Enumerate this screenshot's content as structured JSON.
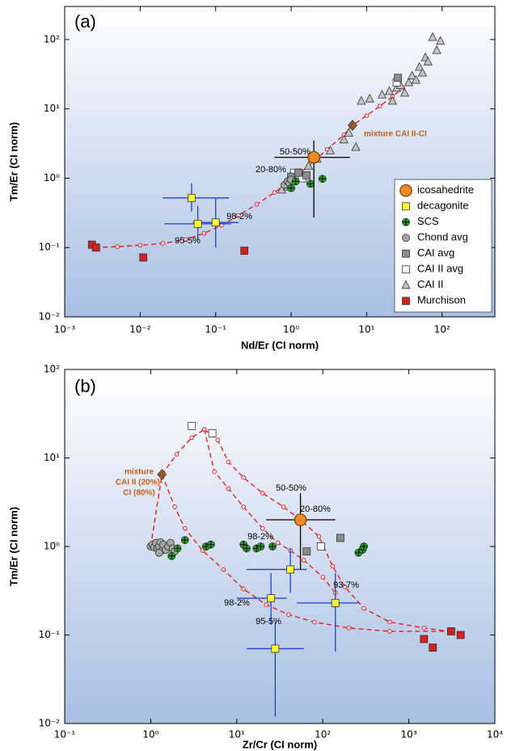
{
  "chart_data": [
    {
      "type": "scatter",
      "xlabel": "Nd/Er (CI norm)",
      "ylabel": "Tm/Er (CI norm)",
      "xscale": "log",
      "yscale": "log",
      "xlim": [
        0.001,
        500
      ],
      "ylim": [
        0.01,
        300
      ],
      "xticks": [
        {
          "value": 0.001,
          "label": "10⁻³"
        },
        {
          "value": 0.01,
          "label": "10⁻²"
        },
        {
          "value": 0.1,
          "label": "10⁻¹"
        },
        {
          "value": 1,
          "label": "10⁰"
        },
        {
          "value": 10,
          "label": "10¹"
        },
        {
          "value": 100,
          "label": "10²"
        }
      ],
      "yticks": [
        {
          "value": 0.01,
          "label": "10⁻²"
        },
        {
          "value": 0.1,
          "label": "10⁻¹"
        },
        {
          "value": 1,
          "label": "10⁰"
        },
        {
          "value": 10,
          "label": "10¹"
        },
        {
          "value": 100,
          "label": "10²"
        }
      ],
      "legend": "lower right",
      "annotations": [
        "(a)",
        "mixture CAI II-CI",
        "50-50%",
        "20-80%",
        "98-2%",
        "95-5%"
      ],
      "curves": [
        {
          "color": "#e02020",
          "x": [
            0.0025,
            0.005,
            0.01,
            0.02,
            0.04,
            0.07,
            0.12,
            0.2,
            0.35,
            0.6,
            1,
            1.7,
            3,
            5,
            6.5,
            10,
            15,
            22,
            30
          ],
          "y": [
            0.1,
            0.103,
            0.108,
            0.115,
            0.13,
            0.16,
            0.21,
            0.29,
            0.42,
            0.62,
            0.95,
            1.5,
            2.6,
            4.2,
            5.8,
            8,
            11,
            15,
            20
          ]
        }
      ],
      "series": [
        {
          "name": "CAI II",
          "marker": "triangle",
          "color": "#c4c4c4",
          "x": [
            0.75,
            0.9,
            1.0,
            1.3,
            1.7,
            2.2,
            3.3,
            5.0,
            5.8,
            8.5,
            7.2,
            11,
            16,
            20,
            22,
            25,
            28,
            32,
            36,
            40,
            45,
            50,
            55,
            60,
            65,
            75,
            85,
            95
          ],
          "y": [
            0.68,
            0.75,
            1.1,
            1.2,
            1.5,
            1.9,
            2.5,
            3.6,
            4.5,
            13,
            2.8,
            14,
            16,
            18,
            13,
            20,
            22,
            17,
            24,
            30,
            26,
            40,
            33,
            55,
            48,
            108,
            70,
            95
          ]
        },
        {
          "name": "CAI II avg",
          "marker": "square",
          "color": "#ffffff",
          "x": [
            1.1,
            1.4,
            25
          ],
          "y": [
            1.2,
            1.0,
            24
          ]
        },
        {
          "name": "CAI avg",
          "marker": "square",
          "color": "#8c8c8c",
          "x": [
            1.0,
            1.25,
            1.6,
            26
          ],
          "y": [
            1.05,
            1.2,
            1.1,
            28
          ]
        },
        {
          "name": "Chond avg",
          "marker": "circle",
          "color": "#a6a6a6",
          "x": [
            0.82,
            0.9,
            0.95,
            1.0
          ],
          "y": [
            0.8,
            0.9,
            0.85,
            0.95
          ]
        },
        {
          "name": "SCS",
          "marker": "circle-plus",
          "color": "#2e9e2e",
          "x": [
            1.0,
            1.15,
            1.8,
            2.6
          ],
          "y": [
            0.72,
            0.9,
            0.83,
            0.98
          ]
        },
        {
          "name": "Murchison",
          "marker": "square",
          "color": "#d42020",
          "x": [
            0.0023,
            0.0026,
            0.011,
            0.24
          ],
          "y": [
            0.11,
            0.1,
            0.072,
            0.09
          ]
        },
        {
          "name": "decagonite",
          "marker": "square",
          "color": "#ffff33",
          "error_color": "#1f3fcf",
          "x": [
            0.048,
            0.058,
            0.1
          ],
          "y": [
            0.52,
            0.22,
            0.23
          ],
          "x_range": [
            [
              0.02,
              0.15
            ],
            [
              0.021,
              0.16
            ],
            [
              0.05,
              0.2
            ]
          ],
          "y_range": [
            [
              0.33,
              0.85
            ],
            [
              0.13,
              0.4
            ],
            [
              0.1,
              0.52
            ]
          ]
        },
        {
          "name": "icosahedrite",
          "marker": "big-circle",
          "color": "#f08a24",
          "error_color": "#000000",
          "x": [
            2.0
          ],
          "y": [
            2.0
          ],
          "x_range": [
            [
              0.6,
              6
            ]
          ],
          "y_range": [
            [
              0.27,
              3.5
            ]
          ]
        },
        {
          "marker": "diamond",
          "color": "#9a5a2a",
          "x": [
            6.5
          ],
          "y": [
            5.8
          ]
        }
      ],
      "legend_order": [
        7,
        6,
        4,
        3,
        2,
        1,
        0,
        5
      ]
    },
    {
      "type": "scatter",
      "xlabel": "Zr/Cr (CI norm)",
      "ylabel": "Tm/Er (CI norm)",
      "xscale": "log",
      "yscale": "log",
      "xlim": [
        0.1,
        10000
      ],
      "ylim": [
        0.01,
        100
      ],
      "xticks": [
        {
          "value": 0.1,
          "label": "10⁻¹"
        },
        {
          "value": 1,
          "label": "10⁰"
        },
        {
          "value": 10,
          "label": "10¹"
        },
        {
          "value": 100,
          "label": "10²"
        },
        {
          "value": 1000,
          "label": "10³"
        },
        {
          "value": 10000,
          "label": "10⁴"
        }
      ],
      "yticks": [
        {
          "value": 0.01,
          "label": "10⁻²"
        },
        {
          "value": 0.1,
          "label": "10⁻¹"
        },
        {
          "value": 1,
          "label": "10⁰"
        },
        {
          "value": 10,
          "label": "10¹"
        },
        {
          "value": 100,
          "label": "10²"
        }
      ],
      "annotations": [
        "(b)",
        "mixture",
        "CAI II (20%)-",
        "CI (80%)",
        "50-50%",
        "20-80%",
        "98-2%",
        "98-2%",
        "93-7%",
        "95-5%"
      ],
      "curves": [
        {
          "color": "#e02020",
          "x": [
            4.2,
            6,
            8,
            12,
            20,
            35,
            55,
            90,
            130,
            180,
            300,
            600,
            1500,
            3000
          ],
          "y": [
            21,
            16,
            9,
            6,
            4,
            2.8,
            2,
            1.3,
            0.6,
            0.35,
            0.2,
            0.14,
            0.12,
            0.11
          ]
        },
        {
          "color": "#e02020",
          "x": [
            4.2,
            5.5,
            8,
            12,
            20,
            30,
            42,
            60,
            100,
            140
          ],
          "y": [
            21,
            7,
            4.5,
            2.8,
            1.6,
            1.1,
            0.9,
            0.7,
            0.45,
            0.3
          ]
        },
        {
          "color": "#e02020",
          "x": [
            1,
            1.35,
            1.9,
            2.5,
            4,
            7,
            12,
            22,
            40,
            80,
            200,
            600,
            3000
          ],
          "y": [
            1,
            6.5,
            2.8,
            1.6,
            0.9,
            0.55,
            0.33,
            0.22,
            0.17,
            0.14,
            0.12,
            0.11,
            0.11
          ]
        },
        {
          "color": "#e02020",
          "x": [
            1.35,
            2,
            3,
            4.2
          ],
          "y": [
            6.5,
            11,
            17,
            21
          ]
        }
      ],
      "series": [
        {
          "marker": "square",
          "color": "#ffffff",
          "x": [
            3.0,
            5.2,
            95
          ],
          "y": [
            23,
            19,
            1.0
          ]
        },
        {
          "marker": "square",
          "color": "#8c8c8c",
          "x": [
            65,
            160
          ],
          "y": [
            0.88,
            1.25
          ]
        },
        {
          "marker": "circle",
          "color": "#a6a6a6",
          "x": [
            1.0,
            1.05,
            1.1,
            1.15,
            1.2,
            1.25,
            1.3,
            1.35,
            1.4,
            1.5,
            1.6,
            1.7,
            1.8,
            1.9,
            1.25
          ],
          "y": [
            1.0,
            1.05,
            0.98,
            1.1,
            0.95,
            1.0,
            1.12,
            0.9,
            1.05,
            0.92,
            1.0,
            1.1,
            0.95,
            0.88,
            0.85
          ]
        },
        {
          "marker": "circle-plus",
          "color": "#2e9e2e",
          "x": [
            1.75,
            2.05,
            2.5,
            4.4,
            5.0,
            12,
            13,
            17,
            19,
            26,
            260,
            290,
            300
          ],
          "y": [
            0.78,
            0.95,
            1.18,
            1.0,
            1.05,
            1.05,
            0.95,
            0.95,
            1.0,
            1.0,
            0.85,
            0.92,
            1.0
          ]
        },
        {
          "marker": "square",
          "color": "#d42020",
          "x": [
            1500,
            1900,
            3100,
            4000
          ],
          "y": [
            0.09,
            0.072,
            0.11,
            0.1
          ]
        },
        {
          "marker": "square",
          "color": "#ffff33",
          "error_color": "#1f3fcf",
          "x": [
            42,
            25,
            140,
            28
          ],
          "y": [
            0.55,
            0.26,
            0.23,
            0.07
          ],
          "x_range": [
            [
              13,
              65
            ],
            [
              10,
              38
            ],
            [
              50,
              260
            ],
            [
              13,
              60
            ]
          ],
          "y_range": [
            [
              0.3,
              0.95
            ],
            [
              0.13,
              0.5
            ],
            [
              0.065,
              0.5
            ],
            [
              0.012,
              0.14
            ]
          ]
        },
        {
          "marker": "big-circle",
          "color": "#f08a24",
          "error_color": "#000000",
          "x": [
            55
          ],
          "y": [
            2.0
          ],
          "x_range": [
            [
              22,
              140
            ]
          ],
          "y_range": [
            [
              0.55,
              4.0
            ]
          ]
        },
        {
          "marker": "diamond",
          "color": "#9a5a2a",
          "x": [
            1.35
          ],
          "y": [
            6.5
          ]
        }
      ]
    }
  ]
}
